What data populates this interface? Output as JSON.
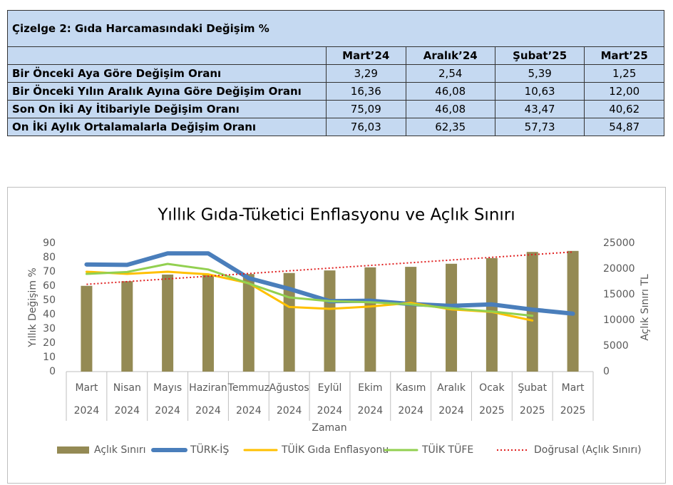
{
  "table": {
    "title": "Çizelge 2: Gıda Harcamasındaki Değişim %",
    "columns": [
      "Mart’24",
      "Aralık’24",
      "Şubat’25",
      "Mart’25"
    ],
    "rows": [
      [
        "Bir Önceki Aya Göre Değişim Oranı",
        "3,29",
        "2,54",
        "5,39",
        "1,25"
      ],
      [
        "Bir Önceki Yılın Aralık Ayına Göre Değişim Oranı",
        "16,36",
        "46,08",
        "10,63",
        "12,00"
      ],
      [
        "Son On İki Ay İtibariyle Değişim Oranı",
        "75,09",
        "46,08",
        "43,47",
        "40,62"
      ],
      [
        "On İki Aylık Ortalamalarla Değişim Oranı",
        "76,03",
        "62,35",
        "57,73",
        "54,87"
      ]
    ]
  },
  "chart_data": {
    "type": "combo",
    "title": "Yıllık Gıda-Tüketici Enflasyonu ve Açlık Sınırı",
    "ylabel": "Yıllık Değişim %",
    "y2label": "Açlık Sınırı TL",
    "xlabel": "Zaman",
    "categories": [
      "Mart",
      "Nisan",
      "Mayıs",
      "Haziran",
      "Temmuz",
      "Ağustos",
      "Eylül",
      "Ekim",
      "Kasım",
      "Aralık",
      "Ocak",
      "Şubat",
      "Mart"
    ],
    "years": [
      "2024",
      "2024",
      "2024",
      "2024",
      "2024",
      "2024",
      "2024",
      "2024",
      "2024",
      "2024",
      "2025",
      "2025",
      "2025"
    ],
    "ylim": [
      0,
      90
    ],
    "yticks": [
      0,
      10,
      20,
      30,
      40,
      50,
      60,
      70,
      80,
      90
    ],
    "y2lim": [
      0,
      25000
    ],
    "y2ticks": [
      0,
      5000,
      10000,
      15000,
      20000,
      25000
    ],
    "series": [
      {
        "name": "Açlık Sınırı",
        "type": "bar",
        "axis": "y2",
        "color": "#948a54",
        "values": [
          16700,
          17600,
          18900,
          18900,
          19000,
          19200,
          19700,
          20300,
          20400,
          21000,
          22100,
          23300,
          23500
        ]
      },
      {
        "name": "TÜRK-İŞ",
        "type": "line",
        "color": "#4a7ebb",
        "width": 6,
        "values": [
          75.09,
          74.8,
          82.9,
          82.9,
          65.5,
          58,
          49.4,
          49.7,
          47.4,
          46.08,
          47.1,
          43.47,
          40.62
        ]
      },
      {
        "name": "TÜİK Gıda Enflasyonu",
        "type": "line",
        "color": "#ffc000",
        "width": 3,
        "values": [
          70,
          68.5,
          70,
          68.2,
          62,
          45.3,
          44,
          45.6,
          48.2,
          43.6,
          41.8,
          35.8,
          null
        ]
      },
      {
        "name": "TÜİK TÜFE",
        "type": "line",
        "color": "#92d050",
        "width": 3,
        "values": [
          68.5,
          69.8,
          75.5,
          71.6,
          61.8,
          52,
          49.4,
          48.6,
          47.1,
          44.4,
          42.1,
          39.1,
          null
        ]
      },
      {
        "name": "Doğrusal (Açlık Sınırı)",
        "type": "line",
        "axis": "y2",
        "color": "#e02020",
        "width": 2,
        "dash": "dotted",
        "values": [
          17000,
          17525,
          18050,
          18575,
          19100,
          19625,
          20150,
          20675,
          21200,
          21725,
          22250,
          22775,
          23300
        ]
      }
    ]
  }
}
